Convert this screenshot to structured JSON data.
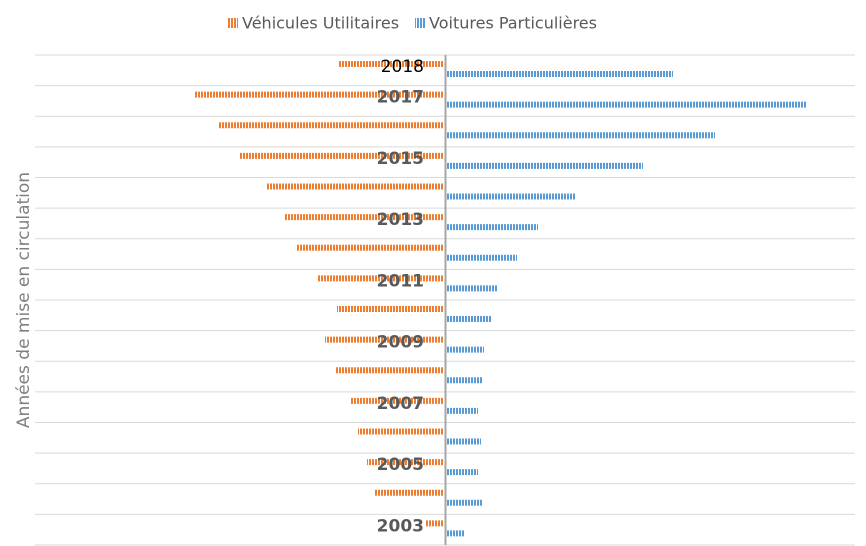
{
  "chart_data": {
    "type": "diverging_bar",
    "y_axis_label": "Années de mise en circulation",
    "categories": [
      "2018",
      "2017",
      null,
      "2015",
      null,
      "2013",
      null,
      "2011",
      null,
      "2009",
      null,
      "2007",
      null,
      "2005",
      null,
      "2003"
    ],
    "series": [
      {
        "name": "Véhicules Utilitaires",
        "color": "#ed7d31",
        "side": "left",
        "values": [
          106,
          249,
          226,
          205,
          178,
          159,
          148,
          126,
          107,
          119,
          109,
          94,
          86,
          77,
          69,
          19
        ]
      },
      {
        "name": "Voitures Particulières",
        "color": "#5b9bd5",
        "side": "right",
        "values": [
          226,
          359,
          268,
          196,
          128,
          91,
          70,
          51,
          44,
          37,
          35,
          31,
          34,
          31,
          35,
          18
        ]
      }
    ],
    "grid": true
  }
}
